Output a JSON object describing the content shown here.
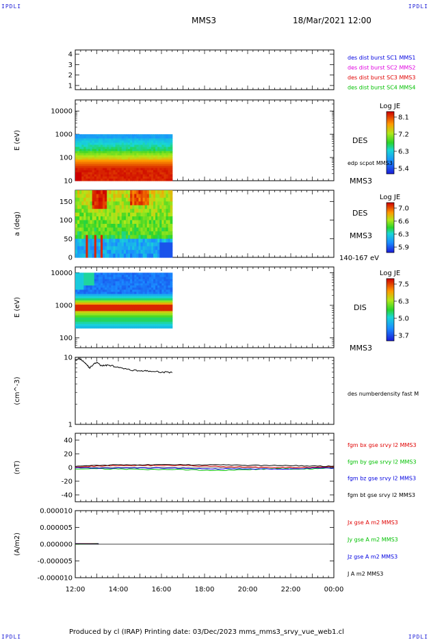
{
  "header": {
    "corner_left": "IPDLI",
    "corner_right": "IPDLI",
    "spacecraft": "MMS3",
    "datetime": "18/Mar/2021 12:00"
  },
  "footer": {
    "credit": "Produced by cl (IRAP)   Printing date: 03/Dec/2023   mms_mms3_srvy_vue_web1.cl",
    "corner_left": "IPDLI",
    "corner_right": "IPDLI"
  },
  "colors": {
    "mms1": "#0000e0",
    "mms2": "#e000e0",
    "mms3": "#e00000",
    "mms4": "#00c000",
    "bx": "#e00000",
    "by": "#00c000",
    "bz": "#0000e0",
    "bt": "#000000"
  },
  "time_axis": {
    "ticks": [
      "12:00",
      "14:00",
      "16:00",
      "18:00",
      "20:00",
      "22:00",
      "00:00"
    ],
    "data_end_label": "16:30"
  },
  "chart_data": [
    {
      "type": "line",
      "panel": "availability",
      "yticks": [
        "1",
        "2",
        "3",
        "4"
      ],
      "ylim": [
        0.6,
        4.4
      ],
      "legend": [
        {
          "name": "des dist burst SC1 MMS1",
          "color": "#0000e0"
        },
        {
          "name": "des dist burst SC2 MMS2",
          "color": "#e000e0"
        },
        {
          "name": "des dist burst SC3 MMS3",
          "color": "#e00000"
        },
        {
          "name": "des dist burst SC4 MMS4",
          "color": "#00c000"
        }
      ]
    },
    {
      "type": "heatmap",
      "panel": "des-energy",
      "ylabel": "E (eV)",
      "yticks": [
        "10",
        "100",
        "1000",
        "10000"
      ],
      "ylim": [
        10,
        30000
      ],
      "yscale": "log",
      "x_range": [
        "12:00",
        "16:30"
      ],
      "colorbar": {
        "title": "Log JE",
        "ticks": [
          "8.1",
          "7.2",
          "6.3",
          "5.4"
        ],
        "range": [
          5.4,
          8.1
        ]
      },
      "labels": [
        "DES",
        "edp scpot MMS3",
        "MMS3"
      ]
    },
    {
      "type": "heatmap",
      "panel": "des-pitch-angle",
      "ylabel": "a (deg)",
      "yticks": [
        "0",
        "50",
        "100",
        "150"
      ],
      "ylim": [
        0,
        180
      ],
      "x_range": [
        "12:00",
        "16:30"
      ],
      "colorbar": {
        "title": "Log JE",
        "ticks": [
          "7.0",
          "6.6",
          "6.3",
          "5.9"
        ],
        "range": [
          5.9,
          7.0
        ]
      },
      "labels": [
        "DES",
        "MMS3",
        "140-167 eV"
      ]
    },
    {
      "type": "heatmap",
      "panel": "dis-energy",
      "ylabel": "E (eV)",
      "yticks": [
        "100",
        "1000",
        "10000"
      ],
      "ylim": [
        50,
        15000
      ],
      "yscale": "log",
      "x_range": [
        "12:00",
        "16:30"
      ],
      "colorbar": {
        "title": "Log JE",
        "ticks": [
          "7.5",
          "6.3",
          "5.0",
          "3.7"
        ],
        "range": [
          3.7,
          7.5
        ]
      },
      "labels": [
        "DIS",
        "MMS3"
      ]
    },
    {
      "type": "line",
      "panel": "density",
      "ylabel": "(cm^-3)",
      "yticks": [
        "1",
        "10"
      ],
      "ylim": [
        1,
        10
      ],
      "yscale": "log",
      "series": [
        {
          "name": "des numberdensity fast M",
          "color": "#000000",
          "x": [
            "12:00",
            "12:10",
            "12:20",
            "12:30",
            "12:40",
            "12:50",
            "13:00",
            "13:10",
            "13:20",
            "13:30",
            "13:45",
            "14:00",
            "14:15",
            "14:30",
            "14:45",
            "15:00",
            "15:15",
            "15:30",
            "15:45",
            "16:00",
            "16:15",
            "16:30"
          ],
          "values": [
            9.3,
            9.6,
            9.0,
            8.0,
            6.9,
            7.8,
            8.4,
            7.6,
            7.5,
            7.7,
            7.4,
            7.0,
            6.8,
            6.5,
            6.4,
            6.3,
            6.25,
            6.2,
            6.1,
            6.0,
            6.0,
            5.9
          ]
        }
      ]
    },
    {
      "type": "line",
      "panel": "magnetic-field",
      "ylabel": "(nT)",
      "yticks": [
        "-40",
        "-20",
        "0",
        "20",
        "40"
      ],
      "ylim": [
        -50,
        50
      ],
      "x": [
        "12:00",
        "13:00",
        "14:00",
        "15:00",
        "16:00",
        "17:00",
        "18:00",
        "19:00",
        "20:00",
        "21:00",
        "22:00",
        "23:00",
        "00:00"
      ],
      "series": [
        {
          "name": "fgm bx gse srvy l2 MMS3",
          "color": "#e00000",
          "values": [
            1,
            2,
            3,
            3,
            3,
            3,
            2,
            1,
            1,
            0,
            0,
            0,
            1
          ]
        },
        {
          "name": "fgm by gse srvy l2 MMS3",
          "color": "#00c000",
          "values": [
            -2,
            -2,
            -2,
            -3,
            -3,
            -3,
            -4,
            -4,
            -3,
            -2,
            -2,
            -2,
            -1
          ]
        },
        {
          "name": "fgm bz gse srvy l2 MMS3",
          "color": "#0000e0",
          "values": [
            0,
            -1,
            -1,
            -1,
            -1,
            -1,
            -2,
            -2,
            -2,
            -2,
            -2,
            -1,
            -1
          ]
        },
        {
          "name": "fgm bt gse srvy l2 MMS3",
          "color": "#000000",
          "values": [
            2,
            3,
            4,
            4,
            4,
            4,
            4,
            4,
            3,
            3,
            3,
            2,
            2
          ]
        }
      ]
    },
    {
      "type": "line",
      "panel": "current-density",
      "ylabel": "(A/m2)",
      "yticks": [
        "0.000010",
        "0.000005",
        "0.000000",
        "-0.000005",
        "-0.000010"
      ],
      "ylim": [
        -1e-05,
        1e-05
      ],
      "x": [
        "12:00",
        "12:30",
        "13:00",
        "13:05"
      ],
      "series": [
        {
          "name": "Jx gse A m2 MMS3",
          "color": "#e00000",
          "values": [
            0,
            0,
            0,
            0
          ]
        },
        {
          "name": "Jy gse A m2 MMS3",
          "color": "#00c000",
          "values": [
            0,
            0,
            0,
            0
          ]
        },
        {
          "name": "Jz gse A m2 MMS3",
          "color": "#0000e0",
          "values": [
            0,
            0,
            0,
            0
          ]
        },
        {
          "name": "J A m2 MMS3",
          "color": "#000000",
          "values": [
            0,
            0,
            0,
            0
          ]
        }
      ]
    }
  ]
}
